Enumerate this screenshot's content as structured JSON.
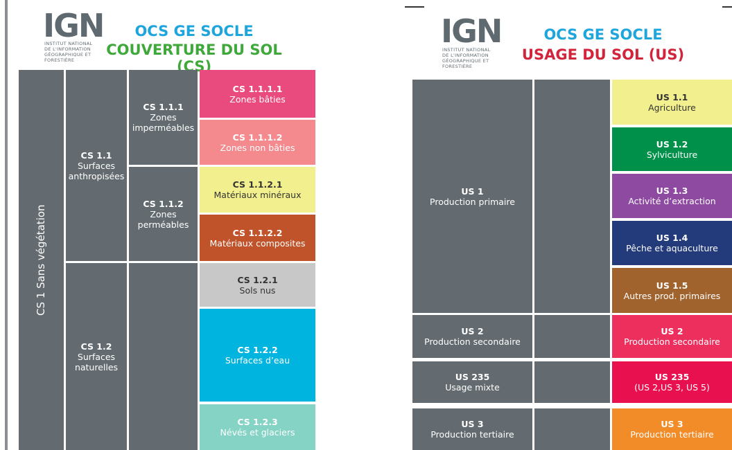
{
  "left": {
    "logo": "IGN",
    "institute": "INSTITUT NATIONAL DE L'INFORMATION GÉOGRAPHIQUE ET FORESTIÈRE",
    "title": "OCS GE SOCLE",
    "subtitle": "COUVERTURE DU SOL (CS)",
    "cells": [
      {
        "code": "CS 1 Sans végétation"
      },
      {
        "code": "CS 1.1",
        "label": "Surfaces anthropisées"
      },
      {
        "code": "CS 1.2",
        "label": "Surfaces naturelles"
      },
      {
        "code": "CS 1.1.1",
        "label": "Zones imperméables"
      },
      {
        "code": "CS 1.1.2",
        "label": "Zones perméables"
      },
      {
        "code": "CS 1.1.1.1",
        "label": "Zones bâties"
      },
      {
        "code": "CS 1.1.1.2",
        "label": "Zones non bâties"
      },
      {
        "code": "CS 1.1.2.1",
        "label": "Matériaux minéraux"
      },
      {
        "code": "CS 1.1.2.2",
        "label": "Matériaux composites"
      },
      {
        "code": "CS 1.2.1",
        "label": "Sols nus"
      },
      {
        "code": "CS 1.2.2",
        "label": "Surfaces d’eau"
      },
      {
        "code": "CS 1.2.3",
        "label": "Névés et glaciers"
      }
    ]
  },
  "right": {
    "logo": "IGN",
    "institute": "INSTITUT NATIONAL DE L'INFORMATION GÉOGRAPHIQUE ET FORESTIÈRE",
    "title": "OCS GE SOCLE",
    "subtitle": "USAGE DU SOL (US)",
    "cells": [
      {
        "code": "US 1",
        "label": "Production primaire"
      },
      {
        "code": "US 1.1",
        "label": "Agriculture"
      },
      {
        "code": "US 1.2",
        "label": "Sylviculture"
      },
      {
        "code": "US 1.3",
        "label": "Activité d’extraction"
      },
      {
        "code": "US 1.4",
        "label": "Pêche et aquaculture"
      },
      {
        "code": "US 1.5",
        "label": "Autres prod. primaires"
      },
      {
        "code": "US 2",
        "label": "Production secondaire"
      },
      {
        "code": "US 2",
        "label": "Production secondaire"
      },
      {
        "code": "US 235",
        "label": "Usage mixte"
      },
      {
        "code": "US 235",
        "label": "(US 2,US 3, US 5)"
      },
      {
        "code": "US 3",
        "label": "Production tertiaire"
      },
      {
        "code": "US 3",
        "label": "Production tertiaire"
      }
    ]
  }
}
